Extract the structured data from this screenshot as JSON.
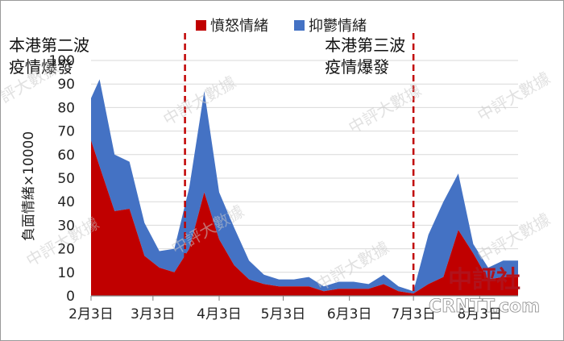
{
  "chart_data": {
    "type": "area",
    "title": "",
    "xlabel": "",
    "ylabel": "負面情緒×10000",
    "ylim": [
      0,
      100
    ],
    "yticks": [
      0,
      10,
      20,
      30,
      40,
      50,
      60,
      70,
      80,
      90,
      100
    ],
    "xticks": [
      {
        "label": "2月3日",
        "x": 0
      },
      {
        "label": "3月3日",
        "x": 29
      },
      {
        "label": "4月3日",
        "x": 60
      },
      {
        "label": "5月3日",
        "x": 90
      },
      {
        "label": "6月3日",
        "x": 121
      },
      {
        "label": "7月3日",
        "x": 151
      },
      {
        "label": "8月3日",
        "x": 182
      }
    ],
    "x": [
      0,
      4,
      11,
      18,
      25,
      32,
      39,
      46,
      53,
      60,
      67,
      74,
      81,
      88,
      95,
      102,
      109,
      116,
      123,
      130,
      137,
      144,
      151,
      158,
      165,
      172,
      179,
      186,
      193,
      200
    ],
    "series": [
      {
        "name": "憤怒情緒",
        "color": "#c00000",
        "values": [
          66,
          55,
          36,
          37,
          17,
          12,
          10,
          20,
          44,
          24,
          13,
          7,
          5,
          4,
          4,
          4,
          2,
          3,
          3,
          3,
          5,
          2,
          1,
          5,
          8,
          28,
          18,
          7,
          8,
          8
        ]
      },
      {
        "name": "抑鬱情緒",
        "color": "#4472c4",
        "values": [
          18,
          37,
          24,
          20,
          14,
          7,
          10,
          26,
          43,
          20,
          16,
          8,
          4,
          3,
          3,
          4,
          2,
          3,
          3,
          2,
          4,
          2,
          1,
          21,
          32,
          24,
          4,
          5,
          7,
          7
        ]
      }
    ],
    "stacked": true,
    "legend_position": "top",
    "grid": true,
    "vlines": [
      {
        "x": 44,
        "label_lines": [
          "本港第二波",
          "疫情爆發"
        ],
        "color": "#c00000"
      },
      {
        "x": 151,
        "label_lines": [
          "本港第三波",
          "疫情爆發"
        ],
        "color": "#c00000"
      }
    ]
  },
  "watermark": {
    "text": "中評大數據"
  },
  "logo": {
    "cn": "中評社",
    "en": "CRNTT.com"
  }
}
